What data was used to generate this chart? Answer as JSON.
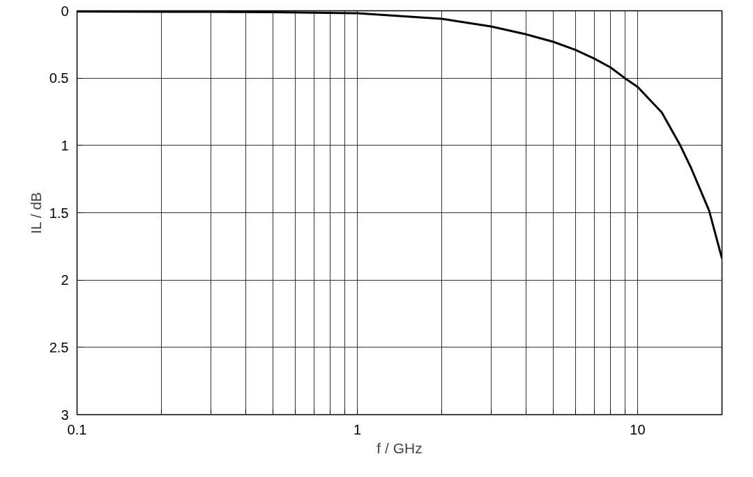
{
  "chart_data": {
    "type": "line",
    "xlabel": "f / GHz",
    "ylabel": "IL / dB",
    "log": "x",
    "grid": true,
    "marker": "none",
    "line_style": "solid",
    "xlim": [
      0.1,
      20
    ],
    "ylim": [
      3,
      0
    ],
    "xticks": [
      0.1,
      {
        "value": 0.2,
        "label": null
      },
      {
        "value": 0.3,
        "label": null
      },
      {
        "value": 0.4,
        "label": null
      },
      {
        "value": 0.5,
        "label": null
      },
      {
        "value": 0.6,
        "label": null
      },
      {
        "value": 0.7,
        "label": null
      },
      {
        "value": 0.8,
        "label": null
      },
      {
        "value": 0.9,
        "label": null
      },
      1,
      {
        "value": 2,
        "label": null
      },
      {
        "value": 3,
        "label": null
      },
      {
        "value": 4,
        "label": null
      },
      {
        "value": 5,
        "label": null
      },
      {
        "value": 6,
        "label": null
      },
      {
        "value": 7,
        "label": null
      },
      {
        "value": 8,
        "label": null
      },
      {
        "value": 9,
        "label": null
      },
      10
    ],
    "yticks": [
      0,
      0.5,
      1,
      1.5,
      2,
      2.5,
      3
    ],
    "x": [
      0.1,
      0.3,
      0.5,
      1,
      2,
      3,
      4,
      5,
      6,
      7,
      8,
      9,
      10,
      12.2,
      14.2,
      15.5,
      18,
      20
    ],
    "series": [
      {
        "color": "#000000",
        "values": [
          0.005,
          0.008,
          0.01,
          0.018,
          0.06,
          0.116,
          0.175,
          0.23,
          0.29,
          0.355,
          0.42,
          0.5,
          0.565,
          0.755,
          1.0,
          1.165,
          1.485,
          1.84
        ]
      }
    ]
  }
}
